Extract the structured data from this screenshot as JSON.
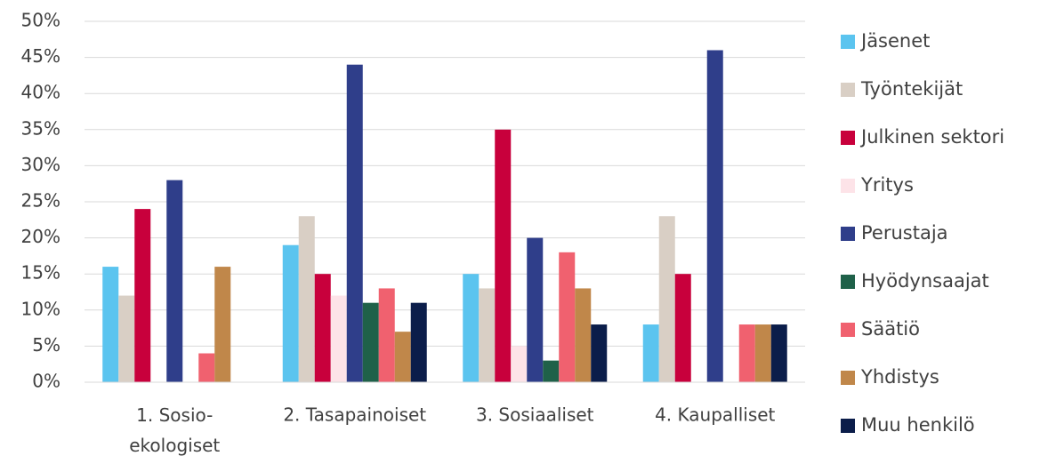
{
  "chart_data": {
    "type": "bar",
    "categories": [
      "1. Sosio-ekologiset",
      "2. Tasapainoiset",
      "3. Sosiaaliset",
      "4. Kaupalliset"
    ],
    "series": [
      {
        "name": "Jäsenet",
        "color": "#5bc4ef",
        "values": [
          16,
          19,
          15,
          8
        ]
      },
      {
        "name": "Työntekijät",
        "color": "#d9cfc5",
        "values": [
          12,
          23,
          13,
          23
        ]
      },
      {
        "name": "Julkinen sektori",
        "color": "#c8003c",
        "values": [
          24,
          15,
          35,
          15
        ]
      },
      {
        "name": "Yritys",
        "color": "#fde3e8",
        "values": [
          0,
          12,
          5,
          0
        ]
      },
      {
        "name": "Perustaja",
        "color": "#2f3e8a",
        "values": [
          28,
          44,
          20,
          46
        ]
      },
      {
        "name": "Hyödynsaajat",
        "color": "#1f6149",
        "values": [
          0,
          11,
          3,
          0
        ]
      },
      {
        "name": "Säätiö",
        "color": "#f0616f",
        "values": [
          4,
          13,
          18,
          8
        ]
      },
      {
        "name": "Yhdistys",
        "color": "#c0874a",
        "values": [
          16,
          7,
          13,
          8
        ]
      },
      {
        "name": "Muu henkilö",
        "color": "#0b1d4a",
        "values": [
          0,
          11,
          8,
          8
        ]
      }
    ],
    "ylim": [
      0,
      50
    ],
    "yticks": [
      {
        "value": 0,
        "label": "0%"
      },
      {
        "value": 5,
        "label": "5%"
      },
      {
        "value": 10,
        "label": "10%"
      },
      {
        "value": 15,
        "label": "15%"
      },
      {
        "value": 20,
        "label": "20%"
      },
      {
        "value": 25,
        "label": "25%"
      },
      {
        "value": 30,
        "label": "30%"
      },
      {
        "value": 35,
        "label": "35%"
      },
      {
        "value": 40,
        "label": "40%"
      },
      {
        "value": 45,
        "label": "45%"
      },
      {
        "value": 50,
        "label": "50%"
      }
    ],
    "grid": true,
    "legend": "right"
  }
}
